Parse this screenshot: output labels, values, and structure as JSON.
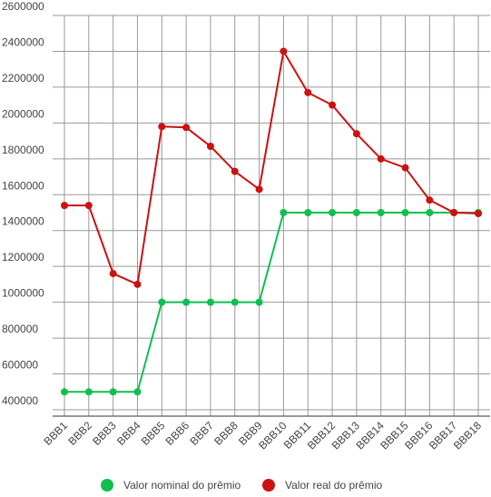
{
  "chart_data": {
    "type": "line",
    "categories": [
      "BBB1",
      "BBB2",
      "BBB3",
      "BBB4",
      "BBB5",
      "BBB6",
      "BBB7",
      "BBB8",
      "BBB9",
      "BBB10",
      "BBB11",
      "BBB12",
      "BBB13",
      "BBB14",
      "BBB15",
      "BBB16",
      "BBB17",
      "BBB18"
    ],
    "series": [
      {
        "name": "Valor nominal do prêmio",
        "color": "#0fbf4f",
        "values": [
          500000,
          500000,
          500000,
          500000,
          1000000,
          1000000,
          1000000,
          1000000,
          1000000,
          1500000,
          1500000,
          1500000,
          1500000,
          1500000,
          1500000,
          1500000,
          1500000,
          1500000
        ]
      },
      {
        "name": "Valor real do prêmio",
        "color": "#cc1111",
        "values": [
          1540000,
          1540000,
          1160000,
          1100000,
          1980000,
          1975000,
          1870000,
          1730000,
          1630000,
          2400000,
          2170000,
          2100000,
          1940000,
          1800000,
          1750000,
          1570000,
          1500000,
          1495000
        ]
      }
    ],
    "ylim": [
      400000,
      2600000
    ],
    "yticks": [
      400000,
      600000,
      800000,
      1000000,
      1200000,
      1400000,
      1600000,
      1800000,
      2000000,
      2200000,
      2400000,
      2600000
    ],
    "grid": true
  }
}
